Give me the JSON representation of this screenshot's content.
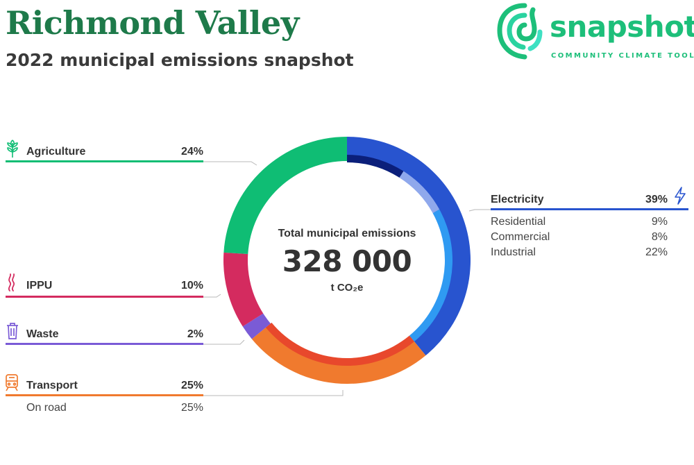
{
  "header": {
    "title": "Richmond Valley",
    "subtitle": "2022 municipal emissions snapshot"
  },
  "logo": {
    "word": "snapshot",
    "tagline": "COMMUNITY CLIMATE TOOL"
  },
  "center": {
    "label": "Total municipal emissions",
    "value": "328 000",
    "unit": "t CO₂e"
  },
  "colors": {
    "electricity": "#2854cf",
    "transport": "#f07a2e",
    "waste": "#7a5bd6",
    "ippu": "#d42b5f",
    "agriculture": "#0fbd74",
    "title": "#1e7a4a",
    "logo": "#1dbf7a"
  },
  "legend": {
    "agriculture": {
      "label": "Agriculture",
      "pct": "24%",
      "icon": "wheat-icon"
    },
    "ippu": {
      "label": "IPPU",
      "pct": "10%",
      "icon": "smoke-icon"
    },
    "waste": {
      "label": "Waste",
      "pct": "2%",
      "icon": "trash-bin-icon"
    },
    "transport": {
      "label": "Transport",
      "pct": "25%",
      "icon": "train-icon",
      "subs": [
        {
          "label": "On road",
          "pct": "25%"
        }
      ]
    },
    "electricity": {
      "label": "Electricity",
      "pct": "39%",
      "icon": "lightning-bolt-icon",
      "subs": [
        {
          "label": "Residential",
          "pct": "9%"
        },
        {
          "label": "Commercial",
          "pct": "8%"
        },
        {
          "label": "Industrial",
          "pct": "22%"
        }
      ]
    }
  },
  "chart_data": {
    "type": "pie",
    "donut": true,
    "title": "Total municipal emissions",
    "total": 328000,
    "unit": "t CO₂e",
    "series": [
      {
        "name": "Electricity",
        "value": 39,
        "color": "#2854cf",
        "subs": [
          {
            "name": "Residential",
            "value": 9,
            "color": "#0b1f7a"
          },
          {
            "name": "Commercial",
            "value": 8,
            "color": "#8fa8ec"
          },
          {
            "name": "Industrial",
            "value": 22,
            "color": "#2f9af2"
          }
        ]
      },
      {
        "name": "Transport",
        "value": 25,
        "color": "#f07a2e",
        "subs": [
          {
            "name": "On road",
            "value": 25,
            "color": "#e8482c"
          }
        ]
      },
      {
        "name": "Waste",
        "value": 2,
        "color": "#7a5bd6",
        "subs": []
      },
      {
        "name": "IPPU",
        "value": 10,
        "color": "#d42b5f",
        "subs": []
      },
      {
        "name": "Agriculture",
        "value": 24,
        "color": "#0fbd74",
        "subs": []
      }
    ]
  }
}
